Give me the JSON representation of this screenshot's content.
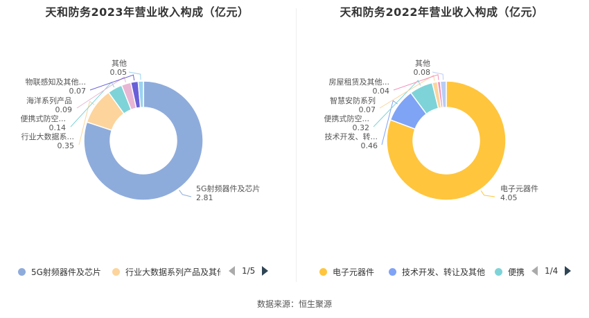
{
  "source": "数据来源：恒生聚源",
  "chart_data": [
    {
      "type": "pie",
      "title": "天和防务2023年营业收入构成（亿元）",
      "slices": [
        {
          "name": "5G射频器件及芯片",
          "label": "5G射频器件及芯片",
          "value": 2.81,
          "color": "#8eacdb"
        },
        {
          "name": "行业大数据系列产品及其他",
          "label": "行业大数据系...",
          "value": 0.35,
          "color": "#fcd49c"
        },
        {
          "name": "便携式防空...",
          "label": "便携式防空...",
          "value": 0.14,
          "color": "#7ed3d8"
        },
        {
          "name": "海洋系列产品",
          "label": "海洋系列产品",
          "value": 0.09,
          "color": "#e8b6d4"
        },
        {
          "name": "物联感知及其他...",
          "label": "物联感知及其他...",
          "value": 0.07,
          "color": "#6a5fd8"
        },
        {
          "name": "其他",
          "label": "其他",
          "value": 0.05,
          "color": "#9bd3f0"
        }
      ],
      "legend": {
        "items": [
          {
            "name": "5G射频器件及芯片",
            "color": "#8eacdb"
          },
          {
            "name": "行业大数据系列产品及其他",
            "color": "#fcd49c"
          }
        ],
        "page": "1/5"
      }
    },
    {
      "type": "pie",
      "title": "天和防务2022年营业收入构成（亿元）",
      "slices": [
        {
          "name": "电子元器件",
          "label": "电子元器件",
          "value": 4.05,
          "color": "#ffc53d"
        },
        {
          "name": "技术开发、转让及其他",
          "label": "技术开发、转...",
          "value": 0.46,
          "color": "#7fa3f5"
        },
        {
          "name": "便携式防空...",
          "label": "便携式防空...",
          "value": 0.32,
          "color": "#7ed3d8"
        },
        {
          "name": "智慧安防系列",
          "label": "智慧安防系列",
          "value": 0.07,
          "color": "#fcd49c"
        },
        {
          "name": "房屋租赁及其他...",
          "label": "房屋租赁及其他...",
          "value": 0.04,
          "color": "#f48fb8"
        },
        {
          "name": "其他",
          "label": "其他",
          "value": 0.08,
          "color": "#b8cdf6"
        }
      ],
      "legend": {
        "items": [
          {
            "name": "电子元器件",
            "color": "#ffc53d"
          },
          {
            "name": "技术开发、转让及其他",
            "color": "#7fa3f5"
          },
          {
            "name": "便携",
            "color": "#7ed3d8"
          }
        ],
        "page": "1/4"
      }
    }
  ]
}
